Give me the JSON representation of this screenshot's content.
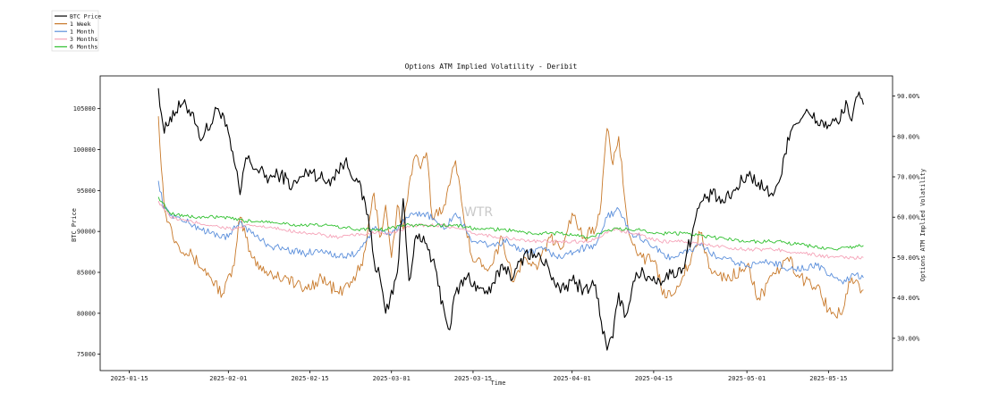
{
  "chart_data": {
    "type": "line",
    "title": "Options ATM Implied Volatility - Deribit",
    "xlabel": "Time",
    "ylabel_left": "BTC Price",
    "ylabel_right": "Options ATM Implied Volatility",
    "watermark": "WTR",
    "x_ticks": [
      "2025-01-15",
      "2025-02-01",
      "2025-02-15",
      "2025-03-01",
      "2025-03-15",
      "2025-04-01",
      "2025-04-15",
      "2025-05-01",
      "2025-05-15"
    ],
    "y_left_ticks": [
      75000,
      80000,
      85000,
      90000,
      95000,
      100000,
      105000
    ],
    "y_right_ticks": [
      "30.00%",
      "40.00%",
      "50.00%",
      "60.00%",
      "70.00%",
      "80.00%",
      "90.00%"
    ],
    "y_left_lim": [
      73000,
      109000
    ],
    "y_right_lim": [
      22,
      95
    ],
    "x_range": [
      "2025-01-10",
      "2025-05-26"
    ],
    "grid": false,
    "legend_position": "top-left (outside plot)",
    "series": [
      {
        "name": "BTC Price",
        "axis": "left",
        "color": "#000000",
        "points": [
          [
            "2025-01-20",
            107500
          ],
          [
            "2025-01-21",
            102000
          ],
          [
            "2025-01-22",
            104000
          ],
          [
            "2025-01-24",
            105500
          ],
          [
            "2025-01-26",
            104500
          ],
          [
            "2025-01-27",
            101500
          ],
          [
            "2025-01-29",
            103000
          ],
          [
            "2025-01-30",
            105000
          ],
          [
            "2025-01-31",
            104500
          ],
          [
            "2025-02-02",
            98500
          ],
          [
            "2025-02-03",
            94500
          ],
          [
            "2025-02-04",
            99000
          ],
          [
            "2025-02-06",
            97500
          ],
          [
            "2025-02-08",
            96500
          ],
          [
            "2025-02-10",
            97000
          ],
          [
            "2025-02-12",
            95500
          ],
          [
            "2025-02-15",
            97500
          ],
          [
            "2025-02-18",
            96000
          ],
          [
            "2025-02-21",
            98500
          ],
          [
            "2025-02-23",
            96500
          ],
          [
            "2025-02-25",
            92000
          ],
          [
            "2025-02-26",
            86500
          ],
          [
            "2025-02-27",
            84500
          ],
          [
            "2025-02-28",
            80000
          ],
          [
            "2025-03-02",
            85000
          ],
          [
            "2025-03-03",
            94000
          ],
          [
            "2025-03-04",
            84000
          ],
          [
            "2025-03-05",
            89000
          ],
          [
            "2025-03-07",
            88500
          ],
          [
            "2025-03-08",
            86500
          ],
          [
            "2025-03-10",
            80500
          ],
          [
            "2025-03-11",
            78000
          ],
          [
            "2025-03-12",
            82500
          ],
          [
            "2025-03-14",
            84500
          ],
          [
            "2025-03-16",
            83000
          ],
          [
            "2025-03-18",
            82500
          ],
          [
            "2025-03-20",
            86000
          ],
          [
            "2025-03-22",
            84500
          ],
          [
            "2025-03-24",
            87500
          ],
          [
            "2025-03-26",
            87000
          ],
          [
            "2025-03-28",
            85500
          ],
          [
            "2025-03-30",
            82500
          ],
          [
            "2025-04-01",
            84000
          ],
          [
            "2025-04-03",
            83000
          ],
          [
            "2025-04-05",
            83500
          ],
          [
            "2025-04-06",
            79000
          ],
          [
            "2025-04-07",
            75500
          ],
          [
            "2025-04-08",
            77000
          ],
          [
            "2025-04-09",
            82500
          ],
          [
            "2025-04-10",
            79500
          ],
          [
            "2025-04-12",
            85000
          ],
          [
            "2025-04-14",
            84500
          ],
          [
            "2025-04-16",
            84000
          ],
          [
            "2025-04-18",
            84800
          ],
          [
            "2025-04-20",
            85500
          ],
          [
            "2025-04-22",
            91000
          ],
          [
            "2025-04-23",
            93500
          ],
          [
            "2025-04-25",
            94500
          ],
          [
            "2025-04-27",
            93500
          ],
          [
            "2025-04-29",
            95000
          ],
          [
            "2025-05-01",
            97000
          ],
          [
            "2025-05-03",
            96000
          ],
          [
            "2025-05-05",
            94500
          ],
          [
            "2025-05-06",
            95500
          ],
          [
            "2025-05-07",
            97000
          ],
          [
            "2025-05-08",
            101500
          ],
          [
            "2025-05-09",
            103000
          ],
          [
            "2025-05-11",
            104500
          ],
          [
            "2025-05-13",
            103500
          ],
          [
            "2025-05-15",
            103000
          ],
          [
            "2025-05-17",
            103500
          ],
          [
            "2025-05-18",
            106000
          ],
          [
            "2025-05-19",
            103500
          ],
          [
            "2025-05-20",
            106500
          ],
          [
            "2025-05-21",
            105500
          ]
        ]
      },
      {
        "name": "1 Week",
        "axis": "right",
        "color": "#c8792a",
        "points": [
          [
            "2025-01-20",
            85
          ],
          [
            "2025-01-21",
            62
          ],
          [
            "2025-01-23",
            54
          ],
          [
            "2025-01-26",
            50
          ],
          [
            "2025-01-29",
            45
          ],
          [
            "2025-01-31",
            41
          ],
          [
            "2025-02-02",
            48
          ],
          [
            "2025-02-03",
            60
          ],
          [
            "2025-02-05",
            50
          ],
          [
            "2025-02-08",
            46
          ],
          [
            "2025-02-11",
            45
          ],
          [
            "2025-02-14",
            42
          ],
          [
            "2025-02-17",
            45
          ],
          [
            "2025-02-20",
            41
          ],
          [
            "2025-02-22",
            44
          ],
          [
            "2025-02-24",
            48
          ],
          [
            "2025-02-26",
            66
          ],
          [
            "2025-02-27",
            55
          ],
          [
            "2025-02-28",
            63
          ],
          [
            "2025-03-01",
            50
          ],
          [
            "2025-03-02",
            63
          ],
          [
            "2025-03-03",
            57
          ],
          [
            "2025-03-04",
            68
          ],
          [
            "2025-03-05",
            75
          ],
          [
            "2025-03-06",
            72
          ],
          [
            "2025-03-07",
            76
          ],
          [
            "2025-03-08",
            60
          ],
          [
            "2025-03-10",
            63
          ],
          [
            "2025-03-11",
            68
          ],
          [
            "2025-03-12",
            74
          ],
          [
            "2025-03-13",
            64
          ],
          [
            "2025-03-15",
            49
          ],
          [
            "2025-03-18",
            48
          ],
          [
            "2025-03-20",
            55
          ],
          [
            "2025-03-22",
            44
          ],
          [
            "2025-03-24",
            50
          ],
          [
            "2025-03-26",
            47
          ],
          [
            "2025-03-28",
            55
          ],
          [
            "2025-03-30",
            52
          ],
          [
            "2025-04-01",
            61
          ],
          [
            "2025-04-03",
            55
          ],
          [
            "2025-04-05",
            57
          ],
          [
            "2025-04-06",
            64
          ],
          [
            "2025-04-07",
            82
          ],
          [
            "2025-04-08",
            73
          ],
          [
            "2025-04-09",
            80
          ],
          [
            "2025-04-10",
            65
          ],
          [
            "2025-04-11",
            55
          ],
          [
            "2025-04-13",
            50
          ],
          [
            "2025-04-15",
            49
          ],
          [
            "2025-04-17",
            40
          ],
          [
            "2025-04-19",
            43
          ],
          [
            "2025-04-21",
            48
          ],
          [
            "2025-04-23",
            56
          ],
          [
            "2025-04-25",
            46
          ],
          [
            "2025-04-28",
            45
          ],
          [
            "2025-05-01",
            48
          ],
          [
            "2025-05-03",
            40
          ],
          [
            "2025-05-06",
            46
          ],
          [
            "2025-05-08",
            50
          ],
          [
            "2025-05-10",
            45
          ],
          [
            "2025-05-13",
            43
          ],
          [
            "2025-05-15",
            37
          ],
          [
            "2025-05-17",
            36
          ],
          [
            "2025-05-18",
            41
          ],
          [
            "2025-05-19",
            45
          ],
          [
            "2025-05-21",
            42
          ]
        ]
      },
      {
        "name": "1 Month",
        "axis": "right",
        "color": "#5b8fdb",
        "points": [
          [
            "2025-01-20",
            69
          ],
          [
            "2025-01-21",
            62
          ],
          [
            "2025-01-23",
            60
          ],
          [
            "2025-01-26",
            58
          ],
          [
            "2025-01-29",
            56
          ],
          [
            "2025-02-01",
            55
          ],
          [
            "2025-02-03",
            59
          ],
          [
            "2025-02-05",
            56
          ],
          [
            "2025-02-08",
            53
          ],
          [
            "2025-02-11",
            52
          ],
          [
            "2025-02-14",
            51
          ],
          [
            "2025-02-17",
            52
          ],
          [
            "2025-02-20",
            50
          ],
          [
            "2025-02-23",
            51
          ],
          [
            "2025-02-26",
            57
          ],
          [
            "2025-03-01",
            56
          ],
          [
            "2025-03-04",
            60
          ],
          [
            "2025-03-07",
            61
          ],
          [
            "2025-03-10",
            57
          ],
          [
            "2025-03-12",
            61
          ],
          [
            "2025-03-15",
            54
          ],
          [
            "2025-03-18",
            53
          ],
          [
            "2025-03-21",
            54
          ],
          [
            "2025-03-24",
            51
          ],
          [
            "2025-03-27",
            52
          ],
          [
            "2025-03-30",
            50
          ],
          [
            "2025-04-02",
            52
          ],
          [
            "2025-04-05",
            53
          ],
          [
            "2025-04-07",
            60
          ],
          [
            "2025-04-09",
            62
          ],
          [
            "2025-04-11",
            56
          ],
          [
            "2025-04-14",
            54
          ],
          [
            "2025-04-17",
            50
          ],
          [
            "2025-04-20",
            51
          ],
          [
            "2025-04-23",
            53
          ],
          [
            "2025-04-26",
            50
          ],
          [
            "2025-05-01",
            48
          ],
          [
            "2025-05-05",
            49
          ],
          [
            "2025-05-09",
            47
          ],
          [
            "2025-05-13",
            48
          ],
          [
            "2025-05-16",
            45
          ],
          [
            "2025-05-18",
            44
          ],
          [
            "2025-05-19",
            46
          ],
          [
            "2025-05-21",
            45
          ]
        ]
      },
      {
        "name": "3 Months",
        "axis": "right",
        "color": "#f5a3b8",
        "points": [
          [
            "2025-01-20",
            64
          ],
          [
            "2025-01-22",
            60
          ],
          [
            "2025-01-25",
            59
          ],
          [
            "2025-01-29",
            58
          ],
          [
            "2025-02-02",
            57
          ],
          [
            "2025-02-05",
            58
          ],
          [
            "2025-02-10",
            57
          ],
          [
            "2025-02-15",
            56
          ],
          [
            "2025-02-20",
            55
          ],
          [
            "2025-02-25",
            56
          ],
          [
            "2025-03-01",
            56
          ],
          [
            "2025-03-05",
            58
          ],
          [
            "2025-03-10",
            58
          ],
          [
            "2025-03-15",
            56
          ],
          [
            "2025-03-20",
            55
          ],
          [
            "2025-03-25",
            54
          ],
          [
            "2025-03-30",
            54
          ],
          [
            "2025-04-04",
            54
          ],
          [
            "2025-04-08",
            57
          ],
          [
            "2025-04-12",
            56
          ],
          [
            "2025-04-16",
            54
          ],
          [
            "2025-04-20",
            54
          ],
          [
            "2025-04-25",
            53
          ],
          [
            "2025-05-01",
            52
          ],
          [
            "2025-05-06",
            52
          ],
          [
            "2025-05-11",
            51
          ],
          [
            "2025-05-16",
            50
          ],
          [
            "2025-05-21",
            50
          ]
        ]
      },
      {
        "name": "6 Months",
        "axis": "right",
        "color": "#2ec02e",
        "points": [
          [
            "2025-01-20",
            65
          ],
          [
            "2025-01-22",
            61
          ],
          [
            "2025-01-26",
            60
          ],
          [
            "2025-01-31",
            60
          ],
          [
            "2025-02-04",
            59
          ],
          [
            "2025-02-08",
            59
          ],
          [
            "2025-02-13",
            58
          ],
          [
            "2025-02-18",
            58
          ],
          [
            "2025-02-23",
            57
          ],
          [
            "2025-02-28",
            57
          ],
          [
            "2025-03-03",
            58
          ],
          [
            "2025-03-07",
            58
          ],
          [
            "2025-03-12",
            58
          ],
          [
            "2025-03-16",
            57
          ],
          [
            "2025-03-20",
            57
          ],
          [
            "2025-03-25",
            56
          ],
          [
            "2025-03-30",
            56
          ],
          [
            "2025-04-04",
            55
          ],
          [
            "2025-04-08",
            57
          ],
          [
            "2025-04-12",
            57
          ],
          [
            "2025-04-16",
            56
          ],
          [
            "2025-04-20",
            56
          ],
          [
            "2025-04-25",
            55
          ],
          [
            "2025-05-01",
            54
          ],
          [
            "2025-05-06",
            54
          ],
          [
            "2025-05-11",
            53
          ],
          [
            "2025-05-16",
            52
          ],
          [
            "2025-05-21",
            53
          ]
        ]
      }
    ]
  }
}
